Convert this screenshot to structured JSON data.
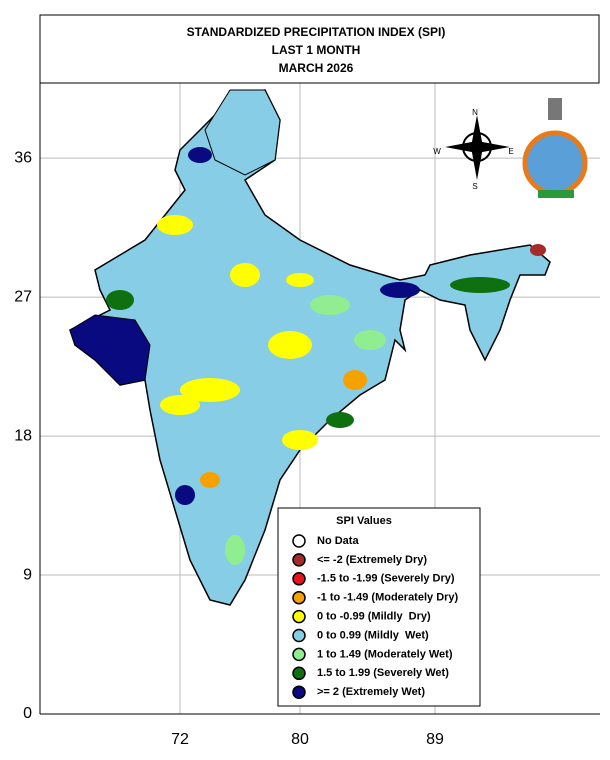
{
  "map": {
    "title_lines": [
      "STANDARDIZED PRECIPITATION INDEX (SPI)",
      "LAST 1 MONTH",
      "MARCH 2026"
    ],
    "lat_ticks": [
      36,
      27,
      18,
      9,
      0
    ],
    "lon_ticks": [
      72,
      80,
      89
    ],
    "compass": [
      "N",
      "E",
      "S",
      "W"
    ],
    "legend": {
      "title": "SPI Values",
      "items": [
        {
          "label": "No Data",
          "color": "#ffffff"
        },
        {
          "label": "<= -2 (Extremely Dry)",
          "color": "#a52a2a"
        },
        {
          "label": "-1.5 to -1.99 (Severely Dry)",
          "color": "#e8141c"
        },
        {
          "label": "-1 to -1.49 (Moderately Dry)",
          "color": "#f5a200"
        },
        {
          "label": "0 to -0.99 (Mildly  Dry)",
          "color": "#ffff00"
        },
        {
          "label": "0 to 0.99 (Mildly  Wet)",
          "color": "#87cde6"
        },
        {
          "label": "1 to 1.49 (Moderately Wet)",
          "color": "#90ee90"
        },
        {
          "label": "1.5 to 1.99 (Severely Wet)",
          "color": "#0f700f"
        },
        {
          "label": ">= 2 (Extremely Wet)",
          "color": "#0a0a80"
        }
      ]
    }
  }
}
